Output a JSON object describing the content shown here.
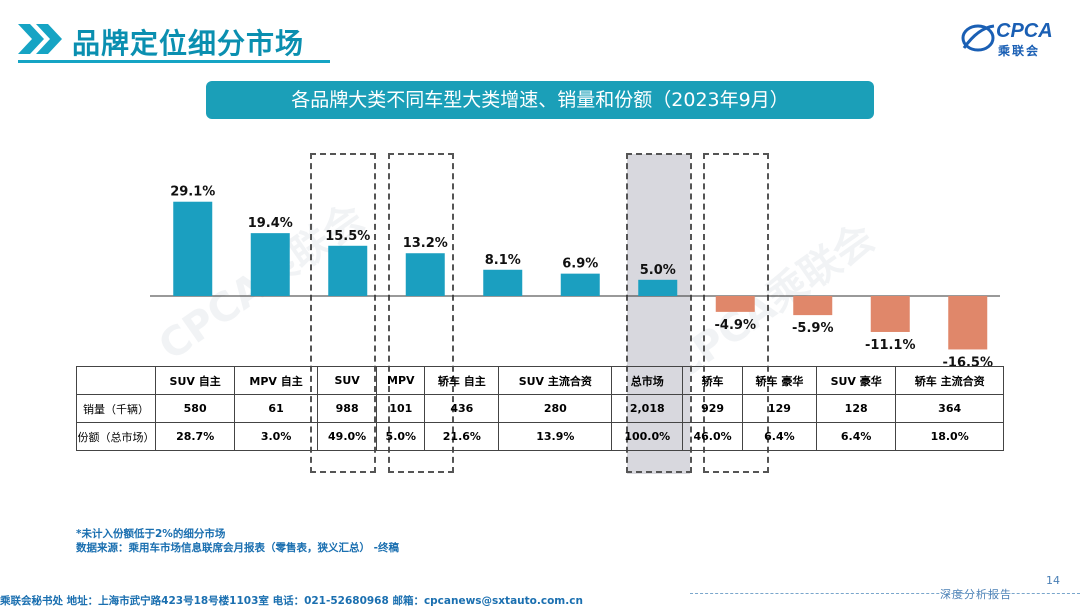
{
  "header": {
    "title": "品牌定位细分市场",
    "logo_text": "CPCA",
    "logo_sub": "乘联会"
  },
  "subtitle": "各品牌大类不同车型大类增速、销量和份额（2023年9月）",
  "watermark": "CPCA乘联会",
  "colors": {
    "positive": "#1b9fc0",
    "negative": "#e0876a",
    "accent": "#16a4c4"
  },
  "chart_data": {
    "type": "bar",
    "title": "各品牌大类不同车型大类增速、销量和份额（2023年9月）",
    "categories": [
      "SUV 自主",
      "MPV 自主",
      "SUV",
      "MPV",
      "轿车 自主",
      "SUV 主流合资",
      "总市场",
      "轿车",
      "轿车 豪华",
      "SUV 豪华",
      "轿车 主流合资"
    ],
    "values": [
      29.1,
      19.4,
      15.5,
      13.2,
      8.1,
      6.9,
      5.0,
      -4.9,
      -5.9,
      -11.1,
      -16.5
    ],
    "labels": [
      "29.1%",
      "19.4%",
      "15.5%",
      "13.2%",
      "8.1%",
      "6.9%",
      "5.0%",
      "-4.9%",
      "-5.9%",
      "-11.1%",
      "-16.5%"
    ],
    "unit": "%",
    "ylim": [
      -16.5,
      29.1
    ]
  },
  "table": {
    "headers": [
      "",
      "SUV 自主",
      "MPV 自主",
      "SUV",
      "MPV",
      "轿车 自主",
      "SUV 主流合资",
      "总市场",
      "轿车",
      "轿车 豪华",
      "SUV 豪华",
      "轿车 主流合资"
    ],
    "rows": [
      {
        "label": "销量（千辆）",
        "cells": [
          "580",
          "61",
          "988",
          "101",
          "436",
          "280",
          "2,018",
          "929",
          "129",
          "128",
          "364"
        ]
      },
      {
        "label": "份额（总市场）",
        "cells": [
          "28.7%",
          "3.0%",
          "49.0%",
          "5.0%",
          "21.6%",
          "13.9%",
          "100.0%",
          "46.0%",
          "6.4%",
          "6.4%",
          "18.0%"
        ]
      }
    ]
  },
  "notes": {
    "footnote1": "*未计入份额低于2%的细分市场",
    "footnote2": "数据来源：乘用车市场信息联席会月报表（零售表，狭义汇总） -终稿"
  },
  "footer": {
    "text": "乘联会秘书处   地址：上海市武宁路423号18号楼1103室  电话：021-52680968   邮箱：cpcanews@sxtauto.com.cn",
    "report": "深度分析报告",
    "page": "14"
  }
}
